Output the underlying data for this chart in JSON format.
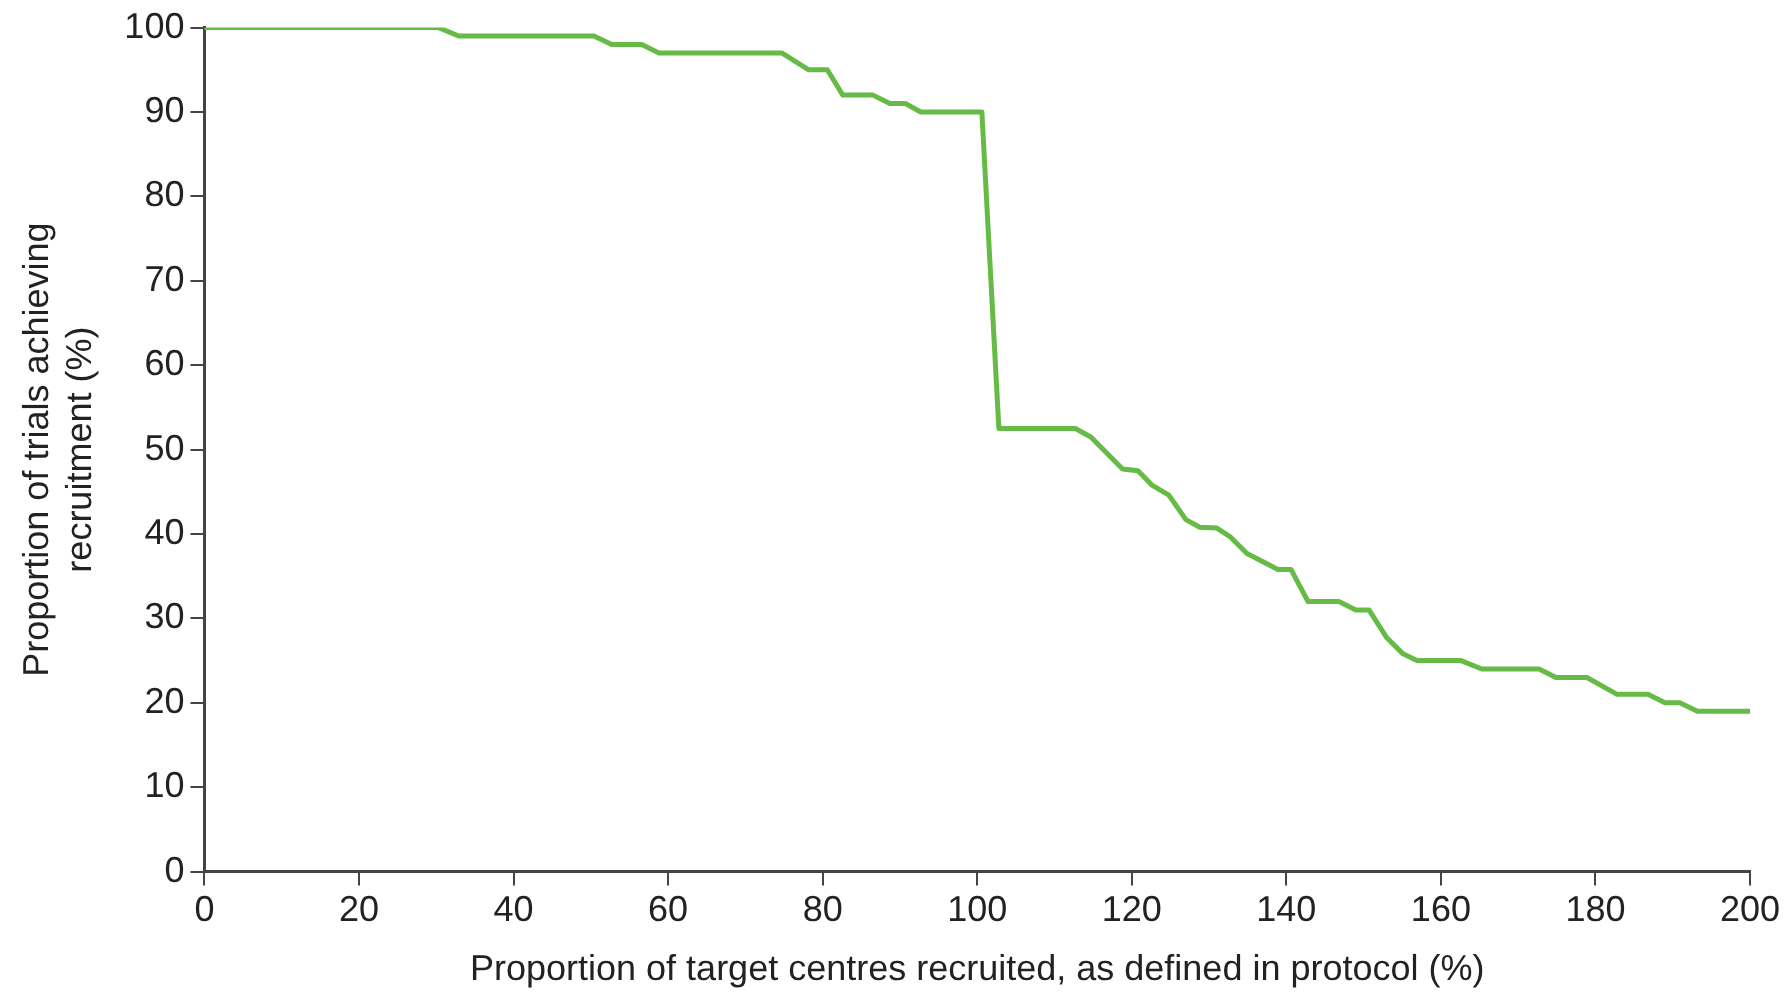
{
  "chart_data": {
    "type": "line",
    "xlabel": "Proportion of target centres recruited, as defined in protocol (%)",
    "ylabel": "Proportion of trials achieving\nrecruitment (%)",
    "xlim": [
      0,
      200
    ],
    "xticks": [
      0,
      20,
      40,
      60,
      80,
      100,
      120,
      140,
      160,
      180,
      200
    ],
    "ylim": [
      0,
      100
    ],
    "yticks": [
      0,
      10,
      20,
      30,
      40,
      50,
      60,
      70,
      80,
      90,
      100
    ],
    "grid": false,
    "legend": false,
    "marker": "none",
    "line_style": "solid",
    "series": [
      {
        "color": "#66bb46",
        "x": [
          0,
          30.3,
          32.9,
          50.4,
          52.7,
          56.6,
          58.8,
          74.7,
          78.2,
          80.6,
          82.6,
          86.5,
          88.7,
          90.7,
          92.7,
          100.6,
          102.8,
          112.7,
          114.7,
          118.8,
          120.8,
          122.6,
          124.8,
          127,
          128.8,
          131,
          132.7,
          134.9,
          138.9,
          140.6,
          142.8,
          146.8,
          149,
          150.7,
          153,
          155.1,
          156.9,
          162.6,
          165.3,
          172.7,
          174.9,
          178.9,
          182.8,
          186.8,
          189,
          190.9,
          193.2,
          200
        ],
        "values": [
          100,
          100,
          99,
          99,
          98,
          98,
          97,
          97,
          95,
          95,
          92,
          92,
          91,
          91,
          90,
          90,
          52.5,
          52.5,
          51.5,
          47.7,
          47.5,
          45.8,
          44.6,
          41.7,
          40.8,
          40.7,
          39.7,
          37.7,
          35.8,
          35.8,
          32,
          32,
          31,
          31,
          27.7,
          25.8,
          25,
          25,
          24,
          24,
          23,
          23,
          21,
          21,
          20,
          20,
          19,
          19
        ]
      }
    ]
  }
}
